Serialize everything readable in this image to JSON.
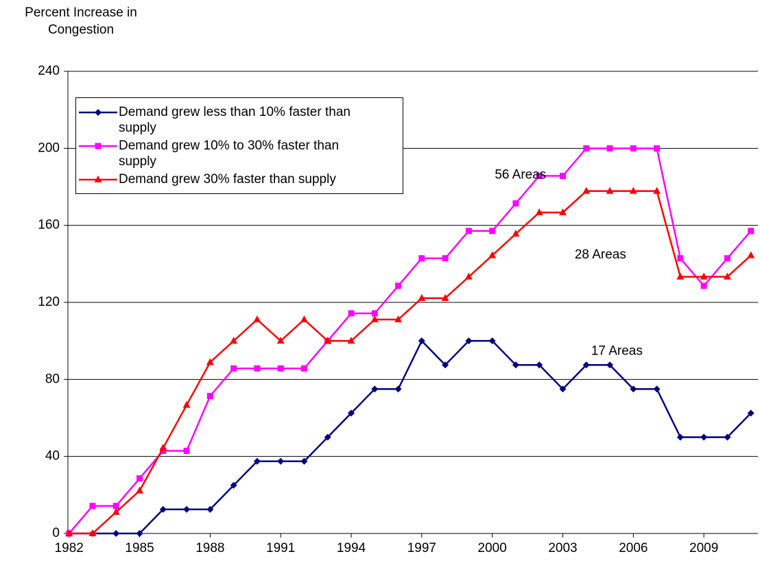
{
  "chart_data": {
    "type": "line",
    "y_label": "Percent Increase in Congestion",
    "x": [
      1982,
      1983,
      1984,
      1985,
      1986,
      1987,
      1988,
      1989,
      1990,
      1991,
      1992,
      1993,
      1994,
      1995,
      1996,
      1997,
      1998,
      1999,
      2000,
      2001,
      2002,
      2003,
      2004,
      2005,
      2006,
      2007,
      2008,
      2009,
      2010,
      2011
    ],
    "series": [
      {
        "name": "Demand grew less than 10% faster than supply",
        "color": "#000080",
        "marker": "diamond",
        "values": [
          0,
          0,
          0,
          0,
          12.5,
          12.5,
          12.5,
          25,
          37.5,
          37.5,
          37.5,
          50,
          62.5,
          75,
          75,
          100,
          87.5,
          100,
          100,
          87.5,
          87.5,
          75,
          87.5,
          87.5,
          75,
          75,
          50,
          50,
          50,
          62.5
        ]
      },
      {
        "name": "Demand grew 10% to 30% faster than supply",
        "color": "#ff00ff",
        "marker": "square",
        "values": [
          0,
          14.3,
          14.3,
          28.6,
          42.9,
          42.9,
          71.4,
          85.7,
          85.7,
          85.7,
          85.7,
          100,
          114.3,
          114.3,
          128.6,
          142.9,
          142.9,
          157.1,
          157.1,
          171.4,
          185.7,
          185.7,
          200,
          200,
          200,
          200,
          142.9,
          128.6,
          142.9,
          157.1
        ]
      },
      {
        "name": "Demand grew 30% faster than supply",
        "color": "#ff0000",
        "marker": "triangle",
        "values": [
          0,
          0,
          11.1,
          22.2,
          44.4,
          66.7,
          88.9,
          100,
          111.1,
          100,
          111.1,
          100,
          100,
          111.1,
          111.1,
          122.2,
          122.2,
          133.3,
          144.4,
          155.6,
          166.7,
          166.7,
          177.8,
          177.8,
          177.8,
          177.8,
          133.3,
          133.3,
          133.3,
          144.4
        ]
      }
    ],
    "annotations": [
      {
        "text": "56 Areas",
        "x": 2001.2,
        "y": 186
      },
      {
        "text": "28 Areas",
        "x": 2004.6,
        "y": 144.5
      },
      {
        "text": "17 Areas",
        "x": 2005.3,
        "y": 94.5
      }
    ],
    "xlim": [
      1981.95,
      2011.3
    ],
    "xticks": [
      1982,
      1985,
      1988,
      1991,
      1994,
      1997,
      2000,
      2003,
      2006,
      2009
    ],
    "ylim": [
      0,
      240
    ],
    "yticks": [
      0,
      40,
      80,
      120,
      160,
      200,
      240
    ],
    "grid": true,
    "legend": "upper left"
  }
}
